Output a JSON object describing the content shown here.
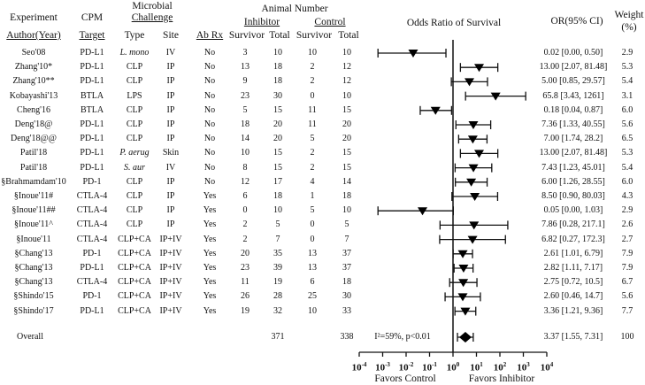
{
  "headers": {
    "experiment": "Experiment",
    "author_year": "Author(Year)",
    "cpm": "CPM",
    "target": "Target",
    "microbial": "Microbial",
    "challenge": "Challenge",
    "type": "Type",
    "site": "Site",
    "abrx": "Ab Rx",
    "animal_number": "Animal Number",
    "inhibitor": "Inhibitor",
    "control": "Control",
    "survivor": "Survivor",
    "total": "Total",
    "plot_title": "Odds Ratio of Survival",
    "or": "OR(95% CI)",
    "weight": "Weight",
    "weight_unit": "(%)"
  },
  "chart_data": {
    "type": "forest",
    "title": "Odds Ratio of Survival",
    "xscale": "log10",
    "xlim": [
      0.0001,
      10000
    ],
    "xticks": [
      "10-4",
      "10-3",
      "10-2",
      "10-1",
      "100",
      "101",
      "102",
      "103",
      "104"
    ],
    "xtick_exponents": [
      -4,
      -3,
      -2,
      -1,
      0,
      1,
      2,
      3,
      4
    ],
    "xlabel_left": "Favors Control",
    "xlabel_right": "Favors Inhibitor",
    "studies": [
      {
        "author": "Seo'08",
        "target": "PD-L1",
        "type": "L. mono",
        "type_italic": true,
        "site": "IV",
        "abrx": "No",
        "inh_surv": "3",
        "inh_total": "10",
        "ctl_surv": "10",
        "ctl_total": "10",
        "or": 0.02,
        "lo": 0.0,
        "hi": 0.5,
        "or_text": "0.02 [0.00, 0.50]",
        "weight": "2.9"
      },
      {
        "author": "Zhang'10*",
        "target": "PD-L1",
        "type": "CLP",
        "site": "IP",
        "abrx": "No",
        "inh_surv": "13",
        "inh_total": "18",
        "ctl_surv": "2",
        "ctl_total": "12",
        "or": 13.0,
        "lo": 2.07,
        "hi": 81.48,
        "or_text": "13.00 [2.07, 81.48]",
        "weight": "5.3"
      },
      {
        "author": "Zhang'10**",
        "target": "PD-L1",
        "type": "CLP",
        "site": "IP",
        "abrx": "No",
        "inh_surv": "9",
        "inh_total": "18",
        "ctl_surv": "2",
        "ctl_total": "12",
        "or": 5.0,
        "lo": 0.85,
        "hi": 29.57,
        "or_text": "5.00 [0.85, 29.57]",
        "weight": "5.4"
      },
      {
        "author": "Kobayashi'13",
        "target": "BTLA",
        "type": "LPS",
        "site": "IP",
        "abrx": "No",
        "inh_surv": "23",
        "inh_total": "30",
        "ctl_surv": "0",
        "ctl_total": "10",
        "or": 65.8,
        "lo": 3.43,
        "hi": 1261,
        "or_text": "65.8 [3.43, 1261]",
        "weight": "3.1"
      },
      {
        "author": "Cheng'16",
        "target": "BTLA",
        "type": "CLP",
        "site": "IP",
        "abrx": "No",
        "inh_surv": "5",
        "inh_total": "15",
        "ctl_surv": "11",
        "ctl_total": "15",
        "or": 0.18,
        "lo": 0.04,
        "hi": 0.87,
        "or_text": "0.18 [0.04, 0.87]",
        "weight": "6.0"
      },
      {
        "author": "Deng'18@",
        "target": "PD-L1",
        "type": "CLP",
        "site": "IP",
        "abrx": "No",
        "inh_surv": "18",
        "inh_total": "20",
        "ctl_surv": "11",
        "ctl_total": "20",
        "or": 7.36,
        "lo": 1.33,
        "hi": 40.55,
        "or_text": "7.36 [1.33, 40.55]",
        "weight": "5.6"
      },
      {
        "author": "Deng'18@@",
        "target": "PD-L1",
        "type": "CLP",
        "site": "IP",
        "abrx": "No",
        "inh_surv": "14",
        "inh_total": "20",
        "ctl_surv": "5",
        "ctl_total": "20",
        "or": 7.0,
        "lo": 1.74,
        "hi": 28.2,
        "or_text": "7.00 [1.74, 28.2]",
        "weight": "6.5"
      },
      {
        "author": "Patil'18",
        "target": "PD-L1",
        "type": "P. aerug",
        "type_italic": true,
        "site": "Skin",
        "abrx": "No",
        "inh_surv": "10",
        "inh_total": "15",
        "ctl_surv": "2",
        "ctl_total": "15",
        "or": 13.0,
        "lo": 2.07,
        "hi": 81.48,
        "or_text": "13.00 [2.07, 81.48]",
        "weight": "5.3"
      },
      {
        "author": "Patil'18",
        "target": "PD-L1",
        "type": "S. aur",
        "type_italic": true,
        "site": "IV",
        "abrx": "No",
        "inh_surv": "8",
        "inh_total": "15",
        "ctl_surv": "2",
        "ctl_total": "15",
        "or": 7.43,
        "lo": 1.23,
        "hi": 45.01,
        "or_text": "7.43 [1.23, 45.01]",
        "weight": "5.4"
      },
      {
        "author": "§Brahmamdam'10",
        "target": "PD-1",
        "type": "CLP",
        "site": "IP",
        "abrx": "No",
        "inh_surv": "12",
        "inh_total": "17",
        "ctl_surv": "4",
        "ctl_total": "14",
        "or": 6.0,
        "lo": 1.26,
        "hi": 28.55,
        "or_text": "6.00 [1.26, 28.55]",
        "weight": "6.0"
      },
      {
        "author": "§Inoue'11#",
        "target": "CTLA-4",
        "type": "CLP",
        "site": "IP",
        "abrx": "Yes",
        "inh_surv": "6",
        "inh_total": "18",
        "ctl_surv": "1",
        "ctl_total": "18",
        "or": 8.5,
        "lo": 0.9,
        "hi": 80.03,
        "or_text": "8.50 [0.90, 80.03]",
        "weight": "4.3"
      },
      {
        "author": "§Inoue'11##",
        "target": "CTLA-4",
        "type": "CLP",
        "site": "IP",
        "abrx": "Yes",
        "inh_surv": "0",
        "inh_total": "10",
        "ctl_surv": "5",
        "ctl_total": "10",
        "or": 0.05,
        "lo": 0.0,
        "hi": 1.03,
        "or_text": "0.05 [0.00, 1.03]",
        "weight": "2.9"
      },
      {
        "author": "§Inoue'11^",
        "target": "CTLA-4",
        "type": "CLP",
        "site": "IP",
        "abrx": "Yes",
        "inh_surv": "2",
        "inh_total": "5",
        "ctl_surv": "0",
        "ctl_total": "5",
        "or": 7.86,
        "lo": 0.28,
        "hi": 217.1,
        "or_text": "7.86 [0.28, 217.1]",
        "weight": "2.6"
      },
      {
        "author": "§Inoue'11",
        "target": "CTLA-4",
        "type": "CLP+CA",
        "site": "IP+IV",
        "abrx": "Yes",
        "inh_surv": "2",
        "inh_total": "7",
        "ctl_surv": "0",
        "ctl_total": "7",
        "or": 6.82,
        "lo": 0.27,
        "hi": 172.3,
        "or_text": "6.82 [0.27, 172.3]",
        "weight": "2.7"
      },
      {
        "author": "§Chang'13",
        "target": "PD-1",
        "type": "CLP+CA",
        "site": "IP+IV",
        "abrx": "Yes",
        "inh_surv": "20",
        "inh_total": "35",
        "ctl_surv": "13",
        "ctl_total": "37",
        "or": 2.61,
        "lo": 1.01,
        "hi": 6.79,
        "or_text": "2.61 [1.01, 6.79]",
        "weight": "7.9"
      },
      {
        "author": "§Chang'13",
        "target": "PD-L1",
        "type": "CLP+CA",
        "site": "IP+IV",
        "abrx": "Yes",
        "inh_surv": "23",
        "inh_total": "39",
        "ctl_surv": "13",
        "ctl_total": "37",
        "or": 2.82,
        "lo": 1.11,
        "hi": 7.17,
        "or_text": "2.82 [1.11, 7.17]",
        "weight": "7.9"
      },
      {
        "author": "§Chang'13",
        "target": "CTLA-4",
        "type": "CLP+CA",
        "site": "IP+IV",
        "abrx": "Yes",
        "inh_surv": "11",
        "inh_total": "19",
        "ctl_surv": "6",
        "ctl_total": "18",
        "or": 2.75,
        "lo": 0.72,
        "hi": 10.5,
        "or_text": "2.75 [0.72, 10.5]",
        "weight": "6.7"
      },
      {
        "author": "§Shindo'15",
        "target": "PD-1",
        "type": "CLP+CA",
        "site": "IP+IV",
        "abrx": "Yes",
        "inh_surv": "26",
        "inh_total": "28",
        "ctl_surv": "25",
        "ctl_total": "30",
        "or": 2.6,
        "lo": 0.46,
        "hi": 14.7,
        "or_text": "2.60 [0.46, 14.7]",
        "weight": "5.6"
      },
      {
        "author": "§Shindo'17",
        "target": "PD-L1",
        "type": "CLP+CA",
        "site": "IP+IV",
        "abrx": "Yes",
        "inh_surv": "19",
        "inh_total": "32",
        "ctl_surv": "10",
        "ctl_total": "33",
        "or": 3.36,
        "lo": 1.21,
        "hi": 9.36,
        "or_text": "3.36 [1.21, 9.36]",
        "weight": "7.7"
      }
    ],
    "overall": {
      "label": "Overall",
      "inh_total": "371",
      "ctl_total": "338",
      "heterogeneity": "I²=59%, p<0.01",
      "or": 3.37,
      "lo": 1.55,
      "hi": 7.31,
      "or_text": "3.37 [1.55, 7.31]",
      "weight": "100"
    }
  }
}
